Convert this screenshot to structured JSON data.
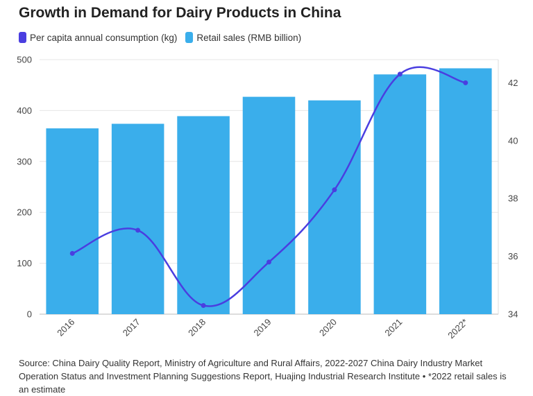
{
  "title": "Growth in Demand for Dairy Products in China",
  "legend": [
    {
      "label": "Per capita annual consumption (kg)",
      "color": "#4a3ee0"
    },
    {
      "label": "Retail sales (RMB billion)",
      "color": "#3aaeeb"
    }
  ],
  "source": "Source: China Dairy Quality Report, Ministry of Agriculture and Rural Affairs, 2022-2027 China Dairy Industry Market Operation Status and Investment Planning Suggestions Report, Huajing Industrial Research Institute • *2022 retail sales is an estimate",
  "chart_data": {
    "type": "bar+line",
    "categories": [
      "2016",
      "2017",
      "2018",
      "2019",
      "2020",
      "2021",
      "2022*"
    ],
    "series": [
      {
        "name": "Retail sales (RMB billion)",
        "type": "bar",
        "axis": "left",
        "color": "#3aaeeb",
        "values": [
          365,
          374,
          389,
          427,
          420,
          471,
          483
        ]
      },
      {
        "name": "Per capita annual consumption (kg)",
        "type": "line",
        "axis": "right",
        "color": "#4a3ee0",
        "values": [
          36.1,
          36.9,
          34.3,
          35.8,
          38.3,
          42.3,
          42.0
        ]
      }
    ],
    "y_left": {
      "min": 0,
      "max": 500,
      "ticks": [
        0,
        100,
        200,
        300,
        400,
        500
      ]
    },
    "y_right": {
      "min": 34,
      "max": 42.8,
      "ticks": [
        34,
        36,
        38,
        40,
        42
      ]
    },
    "grid": true,
    "legend_position": "top-left"
  }
}
